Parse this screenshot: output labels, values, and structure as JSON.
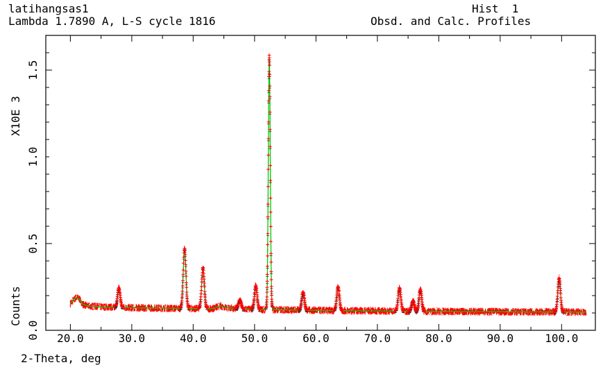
{
  "header": {
    "title": "latihangsas1",
    "subtitle": "Lambda 1.7890 A, L-S cycle 1816",
    "hist_label": "Hist  1",
    "profile_label": "Obsd. and Calc. Profiles"
  },
  "chart_data": {
    "type": "line",
    "xlabel": "2-Theta, deg",
    "ylabel": "Counts",
    "y_multiplier_label": "X10E  3",
    "xlim": [
      16.0,
      105.5
    ],
    "ylim": [
      0.0,
      1.7
    ],
    "x_ticks": [
      "20.0",
      "30.0",
      "40.0",
      "50.0",
      "60.0",
      "70.0",
      "80.0",
      "90.0",
      "100.0"
    ],
    "x_tick_values": [
      20,
      30,
      40,
      50,
      60,
      70,
      80,
      90,
      100
    ],
    "y_ticks": [
      "0.0",
      "0.5",
      "1.0",
      "1.5"
    ],
    "y_tick_values": [
      0.0,
      0.5,
      1.0,
      1.5
    ],
    "series": [
      {
        "role": "observed",
        "marker": "+",
        "color": "#ff0000"
      },
      {
        "role": "calculated",
        "color": "#00cc00"
      },
      {
        "role": "tick-marks",
        "color": "#000000"
      }
    ],
    "background": [
      [
        20.0,
        0.155
      ],
      [
        20.5,
        0.175
      ],
      [
        21.0,
        0.19
      ],
      [
        21.5,
        0.18
      ],
      [
        22.0,
        0.15
      ],
      [
        23.0,
        0.14
      ],
      [
        25.0,
        0.135
      ],
      [
        30.0,
        0.13
      ],
      [
        35.0,
        0.128
      ],
      [
        40.0,
        0.125
      ],
      [
        43.0,
        0.125
      ],
      [
        44.5,
        0.14
      ],
      [
        45.5,
        0.13
      ],
      [
        48.0,
        0.122
      ],
      [
        55.0,
        0.118
      ],
      [
        60.0,
        0.115
      ],
      [
        65.0,
        0.113
      ],
      [
        70.0,
        0.112
      ],
      [
        75.0,
        0.11
      ],
      [
        80.0,
        0.108
      ],
      [
        85.0,
        0.108
      ],
      [
        90.0,
        0.107
      ],
      [
        95.0,
        0.106
      ],
      [
        100.0,
        0.106
      ],
      [
        104.0,
        0.105
      ]
    ],
    "peaks": [
      {
        "x": 27.9,
        "height": 0.245
      },
      {
        "x": 38.6,
        "height": 0.475
      },
      {
        "x": 41.6,
        "height": 0.36
      },
      {
        "x": 47.6,
        "height": 0.175
      },
      {
        "x": 50.2,
        "height": 0.255
      },
      {
        "x": 52.4,
        "height": 1.57
      },
      {
        "x": 57.9,
        "height": 0.22
      },
      {
        "x": 63.6,
        "height": 0.25
      },
      {
        "x": 73.6,
        "height": 0.245
      },
      {
        "x": 75.8,
        "height": 0.17
      },
      {
        "x": 77.0,
        "height": 0.235
      },
      {
        "x": 99.6,
        "height": 0.3
      }
    ]
  }
}
